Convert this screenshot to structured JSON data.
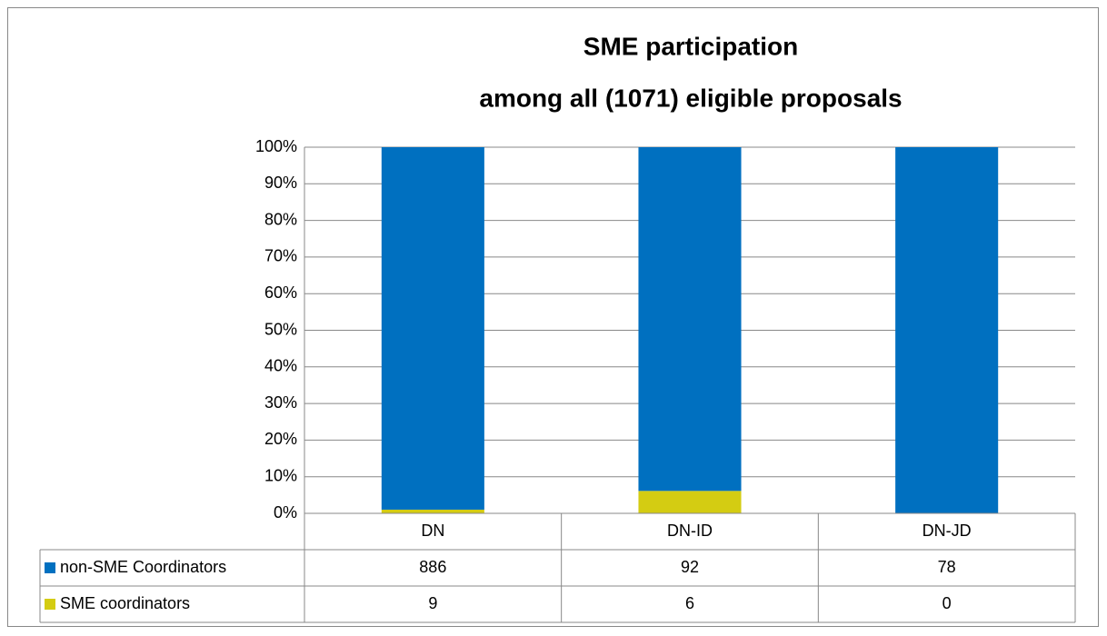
{
  "chart_data": {
    "type": "bar",
    "stacking": "percent",
    "title": "SME participation",
    "subtitle": "among all (1071) eligible proposals",
    "categories": [
      "DN",
      "DN-ID",
      "DN-JD"
    ],
    "series": [
      {
        "name": "non-SME Coordinators",
        "color": "#0070c0",
        "values": [
          886,
          92,
          78
        ]
      },
      {
        "name": "SME coordinators",
        "color": "#d4cc12",
        "values": [
          9,
          6,
          0
        ]
      }
    ],
    "ylim": [
      0,
      100
    ],
    "yticks": [
      {
        "value": 0,
        "label": "0%"
      },
      {
        "value": 10,
        "label": "10%"
      },
      {
        "value": 20,
        "label": "20%"
      },
      {
        "value": 30,
        "label": "30%"
      },
      {
        "value": 40,
        "label": "40%"
      },
      {
        "value": 50,
        "label": "50%"
      },
      {
        "value": 60,
        "label": "60%"
      },
      {
        "value": 70,
        "label": "70%"
      },
      {
        "value": 80,
        "label": "80%"
      },
      {
        "value": 90,
        "label": "90%"
      },
      {
        "value": 100,
        "label": "100%"
      }
    ],
    "grid": true
  }
}
